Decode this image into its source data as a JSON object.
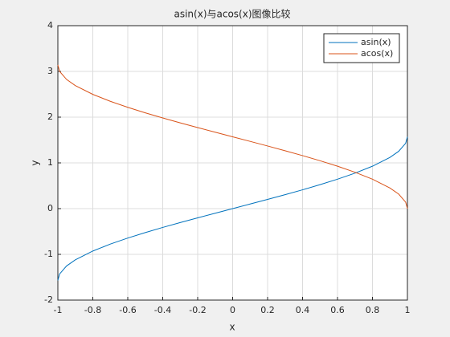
{
  "chart_data": {
    "type": "line",
    "title": "asin(x)与acos(x)图像比较",
    "xlabel": "x",
    "ylabel": "y",
    "x": [
      -1,
      -0.99,
      -0.95,
      -0.9,
      -0.8,
      -0.7,
      -0.6,
      -0.5,
      -0.4,
      -0.3,
      -0.2,
      -0.1,
      0,
      0.1,
      0.2,
      0.3,
      0.4,
      0.5,
      0.6,
      0.7,
      0.8,
      0.9,
      0.95,
      0.99,
      1
    ],
    "series": [
      {
        "name": "asin(x)",
        "color": "#0072bd",
        "values": [
          -1.5708,
          -1.4293,
          -1.2532,
          -1.1198,
          -0.9273,
          -0.7754,
          -0.6435,
          -0.5236,
          -0.4115,
          -0.3047,
          -0.2014,
          -0.1002,
          0,
          0.1002,
          0.2014,
          0.3047,
          0.4115,
          0.5236,
          0.6435,
          0.7754,
          0.9273,
          1.1198,
          1.2532,
          1.4293,
          1.5708
        ]
      },
      {
        "name": "acos(x)",
        "color": "#d95319",
        "values": [
          3.1416,
          3.0001,
          2.824,
          2.6906,
          2.4981,
          2.3462,
          2.2143,
          2.0944,
          1.9823,
          1.8755,
          1.7722,
          1.671,
          1.5708,
          1.4706,
          1.3694,
          1.2661,
          1.1593,
          1.0472,
          0.9273,
          0.7954,
          0.6435,
          0.451,
          0.3176,
          0.1415,
          0
        ]
      }
    ],
    "xlim": [
      -1,
      1
    ],
    "xticks": [
      -1,
      -0.8,
      -0.6,
      -0.4,
      -0.2,
      0,
      0.2,
      0.4,
      0.6,
      0.8,
      1
    ],
    "ylim": [
      -2,
      4
    ],
    "yticks": [
      -2,
      -1,
      0,
      1,
      2,
      3,
      4
    ],
    "grid": true,
    "legend": "top-right"
  }
}
